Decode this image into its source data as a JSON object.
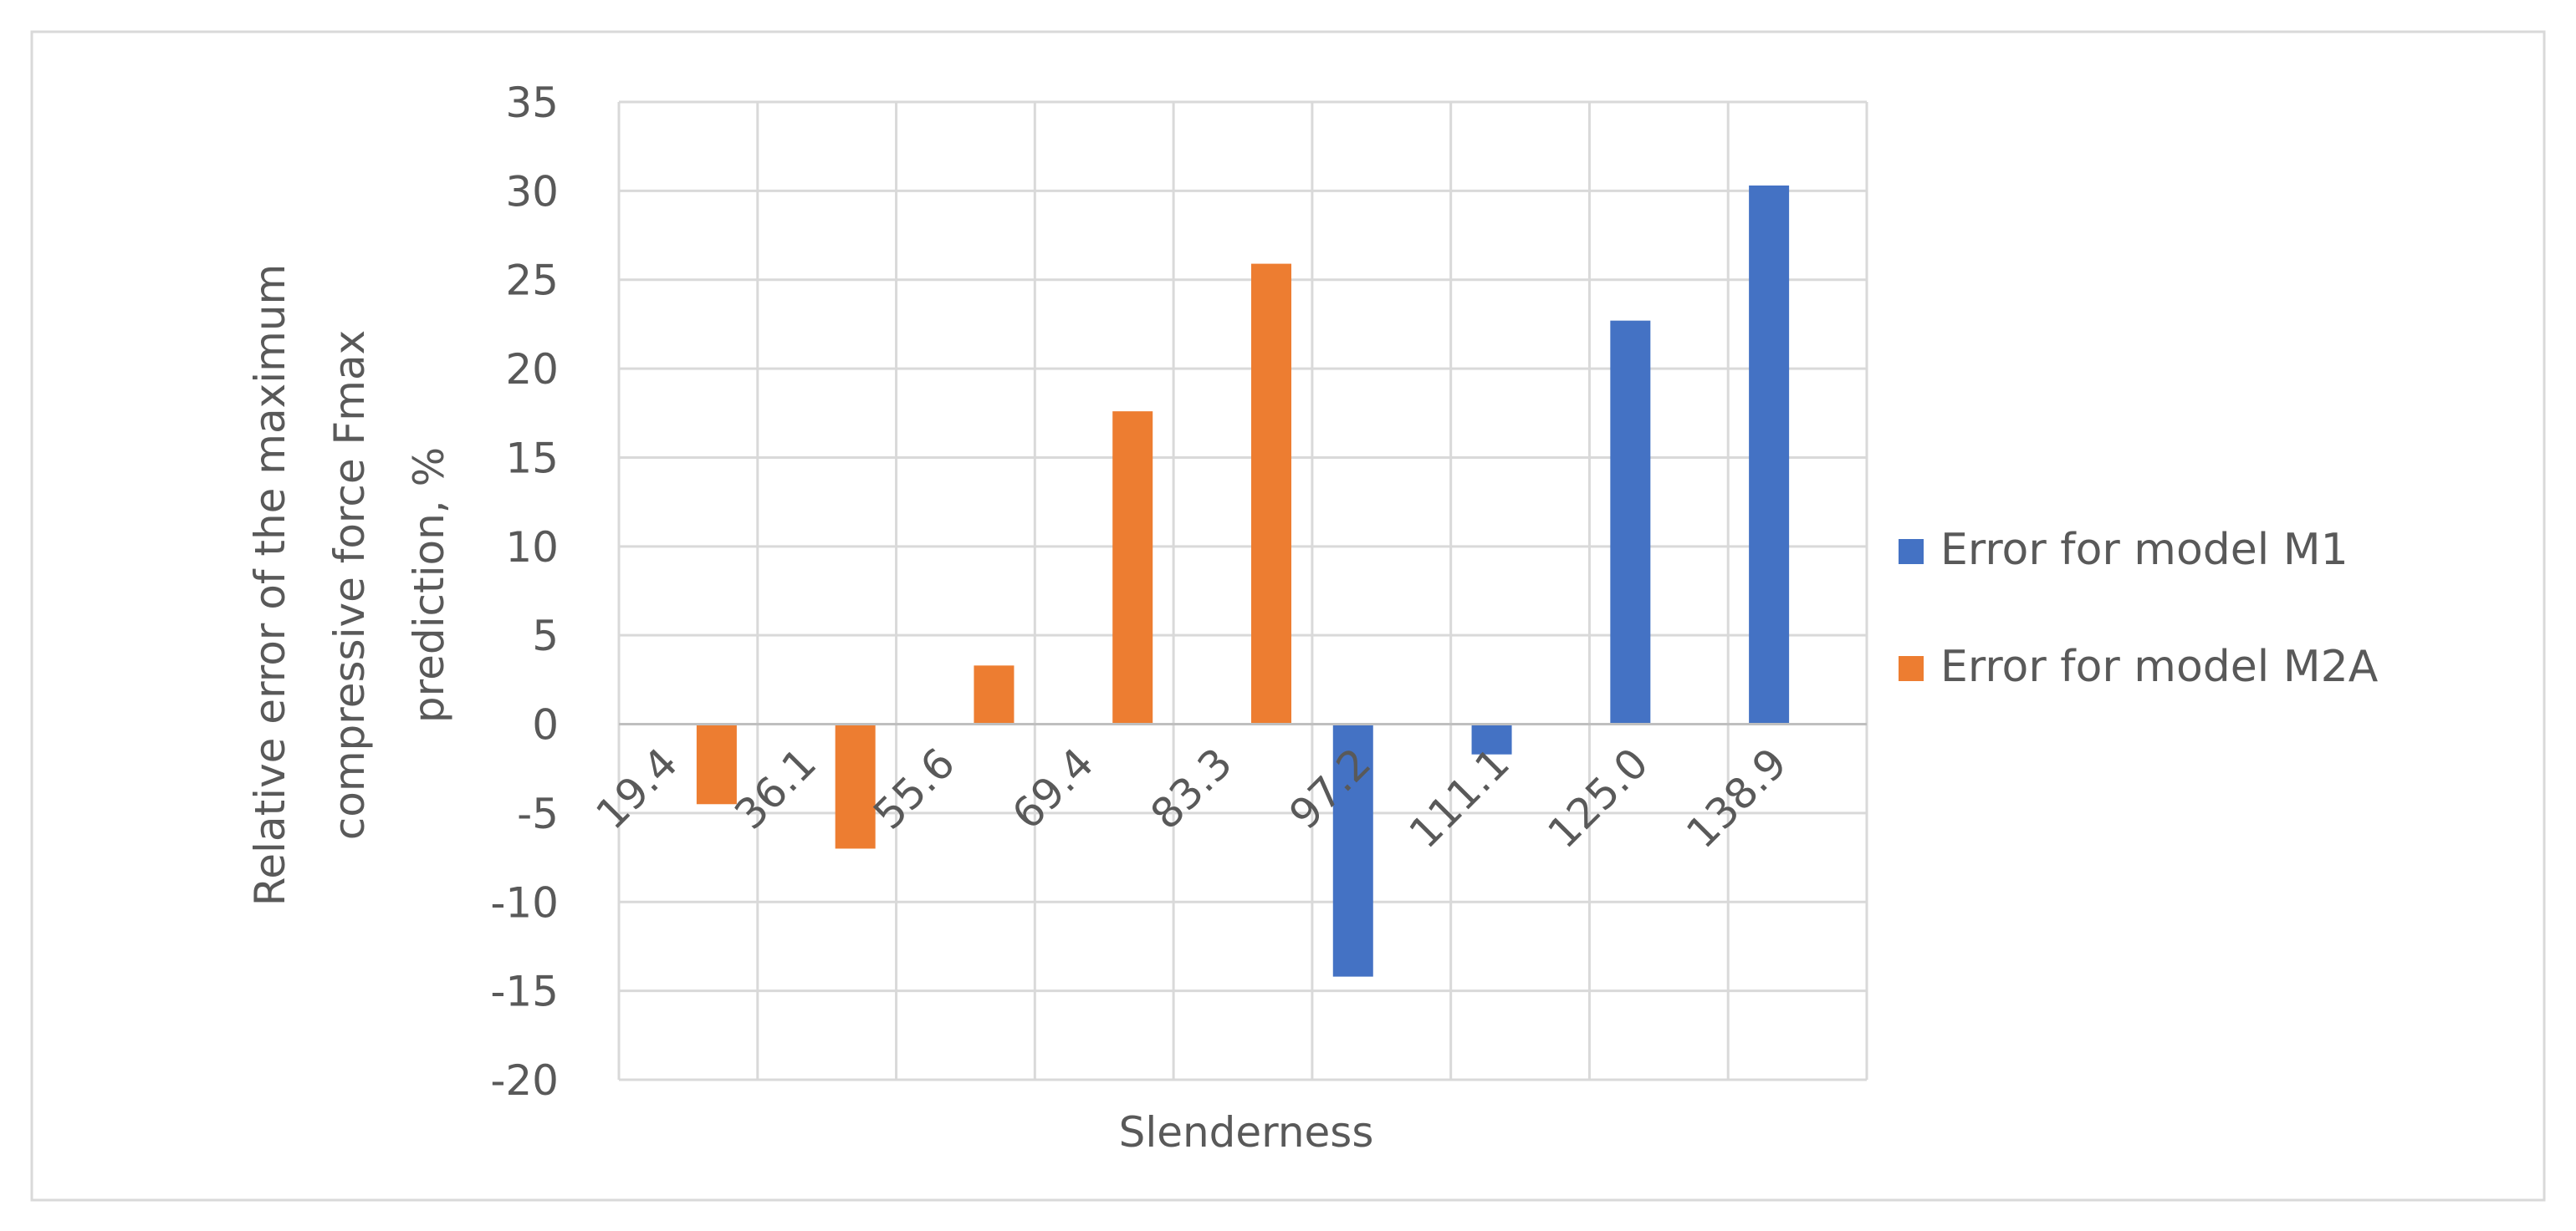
{
  "chart_data": {
    "type": "bar",
    "title": "",
    "xlabel": "Slenderness",
    "ylabel": "Relative error of the maximum compressive force Fmax prediction, %",
    "ylabel_lines": [
      "Relative error of the maximum",
      "compressive force Fmax",
      "prediction, %"
    ],
    "categories": [
      "19.4",
      "36.1",
      "55.6",
      "69.4",
      "83.3",
      "97.2",
      "111.1",
      "125.0",
      "138.9"
    ],
    "ylim": [
      -20,
      35
    ],
    "yticks": [
      35,
      30,
      25,
      20,
      15,
      10,
      5,
      0,
      -5,
      -10,
      -15,
      -20
    ],
    "grid": true,
    "legend_position": "right",
    "series": [
      {
        "name": "Error for model M1",
        "color": "#4472C4",
        "values": [
          null,
          null,
          null,
          null,
          null,
          -14.2,
          -1.7,
          22.7,
          30.3
        ]
      },
      {
        "name": "Error for model M2A",
        "color": "#ED7D31",
        "values": [
          -4.5,
          -7.0,
          3.3,
          17.6,
          25.9,
          null,
          null,
          null,
          null
        ]
      }
    ]
  }
}
